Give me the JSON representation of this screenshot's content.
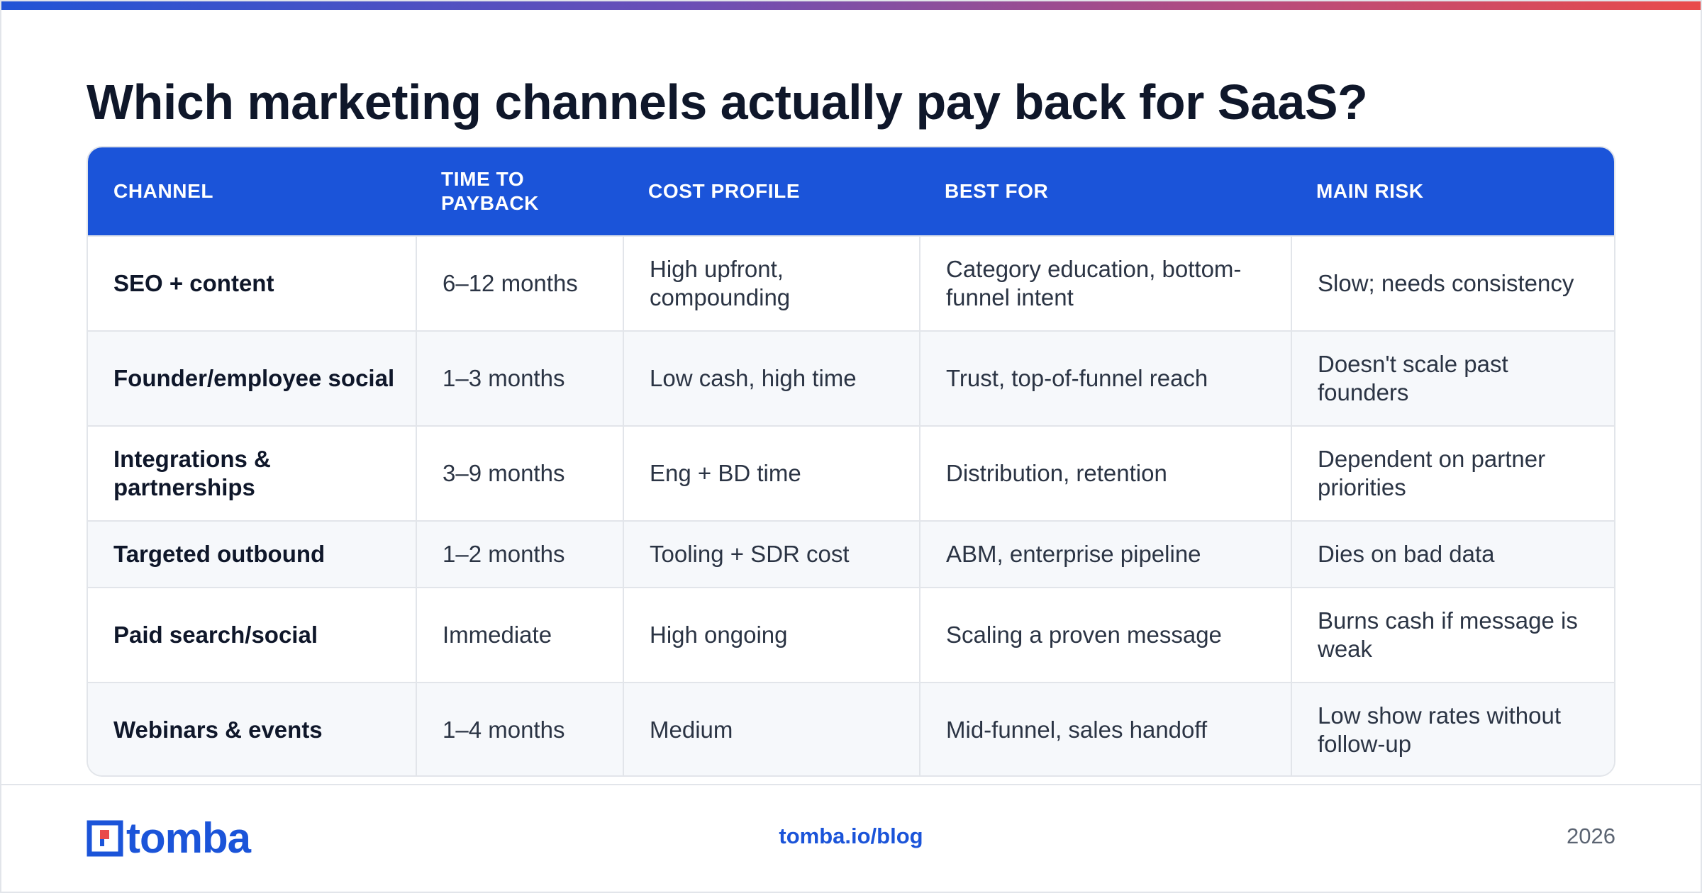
{
  "title": "Which marketing channels actually pay back for SaaS?",
  "colors": {
    "accent": "#1b54d9",
    "text": "#0f172a",
    "muted": "#5b6472"
  },
  "table": {
    "headers": [
      "CHANNEL",
      "TIME TO PAYBACK",
      "COST PROFILE",
      "BEST FOR",
      "MAIN RISK"
    ],
    "rows": [
      {
        "channel": "SEO + content",
        "payback": "6–12 months",
        "cost": "High upfront, compounding",
        "best": "Category education, bottom-funnel intent",
        "risk": "Slow; needs consistency"
      },
      {
        "channel": "Founder/employee social",
        "payback": "1–3 months",
        "cost": "Low cash, high time",
        "best": "Trust, top-of-funnel reach",
        "risk": "Doesn't scale past founders"
      },
      {
        "channel": "Integrations & partnerships",
        "payback": "3–9 months",
        "cost": "Eng + BD time",
        "best": "Distribution, retention",
        "risk": "Dependent on partner priorities"
      },
      {
        "channel": "Targeted outbound",
        "payback": "1–2 months",
        "cost": "Tooling + SDR cost",
        "best": "ABM, enterprise pipeline",
        "risk": "Dies on bad data"
      },
      {
        "channel": "Paid search/social",
        "payback": "Immediate",
        "cost": "High ongoing",
        "best": "Scaling a proven message",
        "risk": "Burns cash if message is weak"
      },
      {
        "channel": "Webinars & events",
        "payback": "1–4 months",
        "cost": "Medium",
        "best": "Mid-funnel, sales handoff",
        "risk": "Low show rates without follow-up"
      }
    ]
  },
  "footer": {
    "logo_text": "tomba",
    "logo_icon": "tomba-logo-icon",
    "url": "tomba.io/blog",
    "year": "2026"
  }
}
